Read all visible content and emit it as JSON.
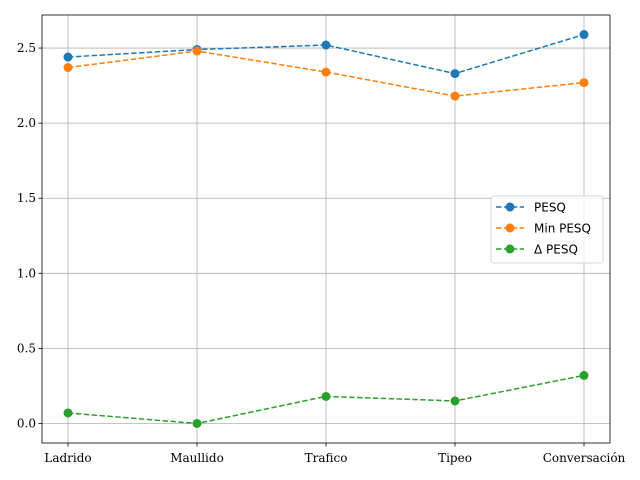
{
  "chart_data": {
    "type": "line",
    "categories": [
      "Ladrido",
      "Maullido",
      "Trafico",
      "Tipeo",
      "Conversación"
    ],
    "series": [
      {
        "name": "PESQ",
        "values": [
          2.44,
          2.49,
          2.52,
          2.33,
          2.59
        ],
        "color": "#1f77b4"
      },
      {
        "name": "Min PESQ",
        "values": [
          2.37,
          2.48,
          2.34,
          2.18,
          2.27
        ],
        "color": "#ff7f0e"
      },
      {
        "name": "Δ PESQ",
        "values": [
          0.07,
          0.0,
          0.18,
          0.15,
          0.32
        ],
        "color": "#2ca02c"
      }
    ],
    "ylim": [
      -0.13,
      2.72
    ],
    "yticks": [
      "0.0",
      "0.5",
      "1.0",
      "1.5",
      "2.0",
      "2.5"
    ],
    "line_style": "dashed",
    "marker": "circle",
    "grid": true,
    "legend_position": "center-right"
  }
}
